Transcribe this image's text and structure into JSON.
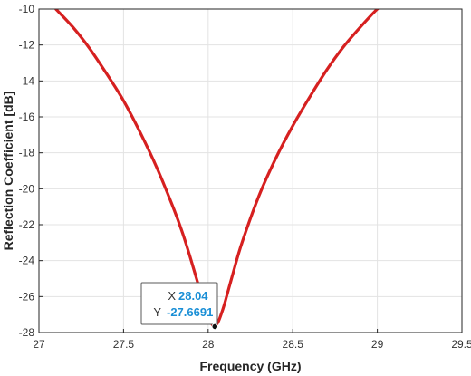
{
  "chart_data": {
    "type": "line",
    "title": "",
    "xlabel": "Frequency (GHz)",
    "ylabel": "Reflection Coefficient [dB]",
    "xlim": [
      27,
      29.5
    ],
    "ylim": [
      -28,
      -10
    ],
    "xticks": [
      27,
      27.5,
      28,
      28.5,
      29,
      29.5
    ],
    "xtick_labels": [
      "27",
      "27.5",
      "28",
      "28.5",
      "29",
      "29.5"
    ],
    "yticks": [
      -28,
      -26,
      -24,
      -22,
      -20,
      -18,
      -16,
      -14,
      -12,
      -10
    ],
    "ytick_labels": [
      "-28",
      "-26",
      "-24",
      "-22",
      "-20",
      "-18",
      "-16",
      "-14",
      "-12",
      "-10"
    ],
    "grid": true,
    "series": [
      {
        "name": "",
        "color": "#d62020",
        "x": [
          27.1,
          27.2,
          27.3,
          27.4,
          27.5,
          27.6,
          27.7,
          27.8,
          27.85,
          27.9,
          27.95,
          28.0,
          28.02,
          28.04,
          28.06,
          28.08,
          28.1,
          28.15,
          28.2,
          28.3,
          28.4,
          28.5,
          28.6,
          28.7,
          28.8,
          28.9,
          29.0,
          29.05
        ],
        "y": [
          -10.0,
          -11.0,
          -12.2,
          -13.6,
          -15.1,
          -16.9,
          -18.9,
          -21.2,
          -22.5,
          -24.0,
          -25.6,
          -27.1,
          -27.5,
          -27.67,
          -27.4,
          -26.9,
          -26.3,
          -24.6,
          -23.0,
          -20.4,
          -18.3,
          -16.5,
          -14.9,
          -13.4,
          -12.1,
          -11.0,
          -10.0,
          -9.7
        ]
      }
    ],
    "datatip": {
      "x_key": "X",
      "x_value": "28.04",
      "y_key": "Y",
      "y_value": "-27.6691",
      "point": [
        28.04,
        -27.6691
      ]
    }
  }
}
